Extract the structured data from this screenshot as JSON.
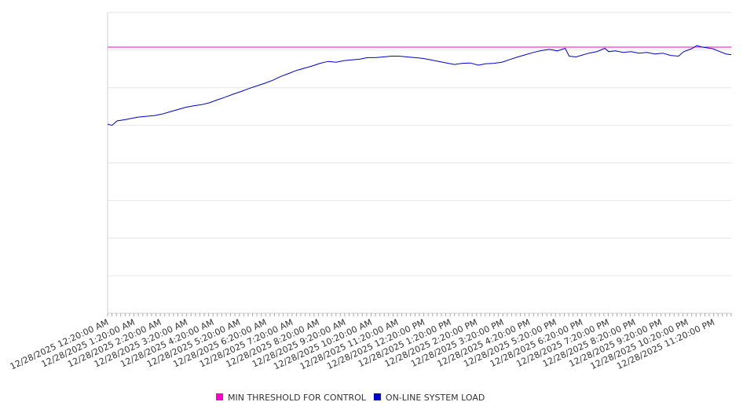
{
  "chart_data": {
    "type": "line",
    "title": "",
    "xlabel": "",
    "ylabel": "",
    "x_ticks": [
      "12/28/2025 12:20:00 AM",
      "12/28/2025 1:20:00 AM",
      "12/28/2025 2:20:00 AM",
      "12/28/2025 3:20:00 AM",
      "12/28/2025 4:20:00 AM",
      "12/28/2025 5:20:00 AM",
      "12/28/2025 6:20:00 AM",
      "12/28/2025 7:20:00 AM",
      "12/28/2025 8:20:00 AM",
      "12/28/2025 9:20:00 AM",
      "12/28/2025 10:20:00 AM",
      "12/28/2025 11:20:00 AM",
      "12/28/2025 12:20:00 PM",
      "12/28/2025 1:20:00 PM",
      "12/28/2025 2:20:00 PM",
      "12/28/2025 3:20:00 PM",
      "12/28/2025 4:20:00 PM",
      "12/28/2025 5:20:00 PM",
      "12/28/2025 6:20:00 PM",
      "12/28/2025 7:20:00 PM",
      "12/28/2025 8:20:00 PM",
      "12/28/2025 9:20:00 PM",
      "12/28/2025 10:20:00 PM",
      "12/28/2025 11:20:00 PM"
    ],
    "x_hours_start": 0.333,
    "x_hours_end": 24.0,
    "ylim": [
      0,
      8
    ],
    "grid": true,
    "legend_position": "bottom",
    "series": [
      {
        "name": "MIN THRESHOLD FOR CONTROL",
        "color": "#ff00cc",
        "points": [
          [
            0.333,
            7.08
          ],
          [
            24.0,
            7.08
          ]
        ]
      },
      {
        "name": "ON-LINE SYSTEM LOAD",
        "color": "#0000cc",
        "points": [
          [
            0.333,
            5.03
          ],
          [
            0.5,
            5.0
          ],
          [
            0.7,
            5.12
          ],
          [
            1.0,
            5.15
          ],
          [
            1.2,
            5.18
          ],
          [
            1.5,
            5.22
          ],
          [
            1.8,
            5.24
          ],
          [
            2.1,
            5.26
          ],
          [
            2.4,
            5.3
          ],
          [
            2.7,
            5.36
          ],
          [
            3.0,
            5.42
          ],
          [
            3.3,
            5.48
          ],
          [
            3.6,
            5.52
          ],
          [
            3.9,
            5.55
          ],
          [
            4.2,
            5.6
          ],
          [
            4.5,
            5.68
          ],
          [
            4.8,
            5.75
          ],
          [
            5.1,
            5.83
          ],
          [
            5.4,
            5.9
          ],
          [
            5.7,
            5.98
          ],
          [
            6.0,
            6.05
          ],
          [
            6.3,
            6.12
          ],
          [
            6.6,
            6.2
          ],
          [
            6.9,
            6.3
          ],
          [
            7.2,
            6.38
          ],
          [
            7.5,
            6.46
          ],
          [
            7.8,
            6.52
          ],
          [
            8.1,
            6.58
          ],
          [
            8.4,
            6.65
          ],
          [
            8.7,
            6.7
          ],
          [
            9.0,
            6.68
          ],
          [
            9.3,
            6.72
          ],
          [
            9.6,
            6.74
          ],
          [
            9.9,
            6.76
          ],
          [
            10.2,
            6.8
          ],
          [
            10.5,
            6.8
          ],
          [
            10.8,
            6.82
          ],
          [
            11.1,
            6.84
          ],
          [
            11.4,
            6.84
          ],
          [
            11.7,
            6.82
          ],
          [
            12.0,
            6.8
          ],
          [
            12.3,
            6.78
          ],
          [
            12.6,
            6.74
          ],
          [
            12.9,
            6.7
          ],
          [
            13.2,
            6.66
          ],
          [
            13.5,
            6.62
          ],
          [
            13.8,
            6.65
          ],
          [
            14.1,
            6.66
          ],
          [
            14.4,
            6.6
          ],
          [
            14.7,
            6.64
          ],
          [
            15.0,
            6.65
          ],
          [
            15.3,
            6.68
          ],
          [
            15.6,
            6.75
          ],
          [
            15.9,
            6.82
          ],
          [
            16.2,
            6.88
          ],
          [
            16.5,
            6.94
          ],
          [
            16.8,
            6.99
          ],
          [
            17.1,
            7.02
          ],
          [
            17.4,
            6.98
          ],
          [
            17.7,
            7.05
          ],
          [
            17.85,
            6.84
          ],
          [
            18.1,
            6.82
          ],
          [
            18.3,
            6.86
          ],
          [
            18.6,
            6.92
          ],
          [
            18.9,
            6.96
          ],
          [
            19.2,
            7.05
          ],
          [
            19.35,
            6.96
          ],
          [
            19.6,
            6.98
          ],
          [
            19.9,
            6.94
          ],
          [
            20.2,
            6.96
          ],
          [
            20.5,
            6.92
          ],
          [
            20.8,
            6.94
          ],
          [
            21.1,
            6.9
          ],
          [
            21.4,
            6.92
          ],
          [
            21.7,
            6.86
          ],
          [
            22.0,
            6.84
          ],
          [
            22.2,
            6.96
          ],
          [
            22.5,
            7.04
          ],
          [
            22.7,
            7.12
          ],
          [
            22.9,
            7.08
          ],
          [
            23.1,
            7.06
          ],
          [
            23.3,
            7.04
          ],
          [
            23.5,
            6.98
          ],
          [
            23.8,
            6.9
          ],
          [
            24.0,
            6.88
          ]
        ]
      }
    ]
  }
}
